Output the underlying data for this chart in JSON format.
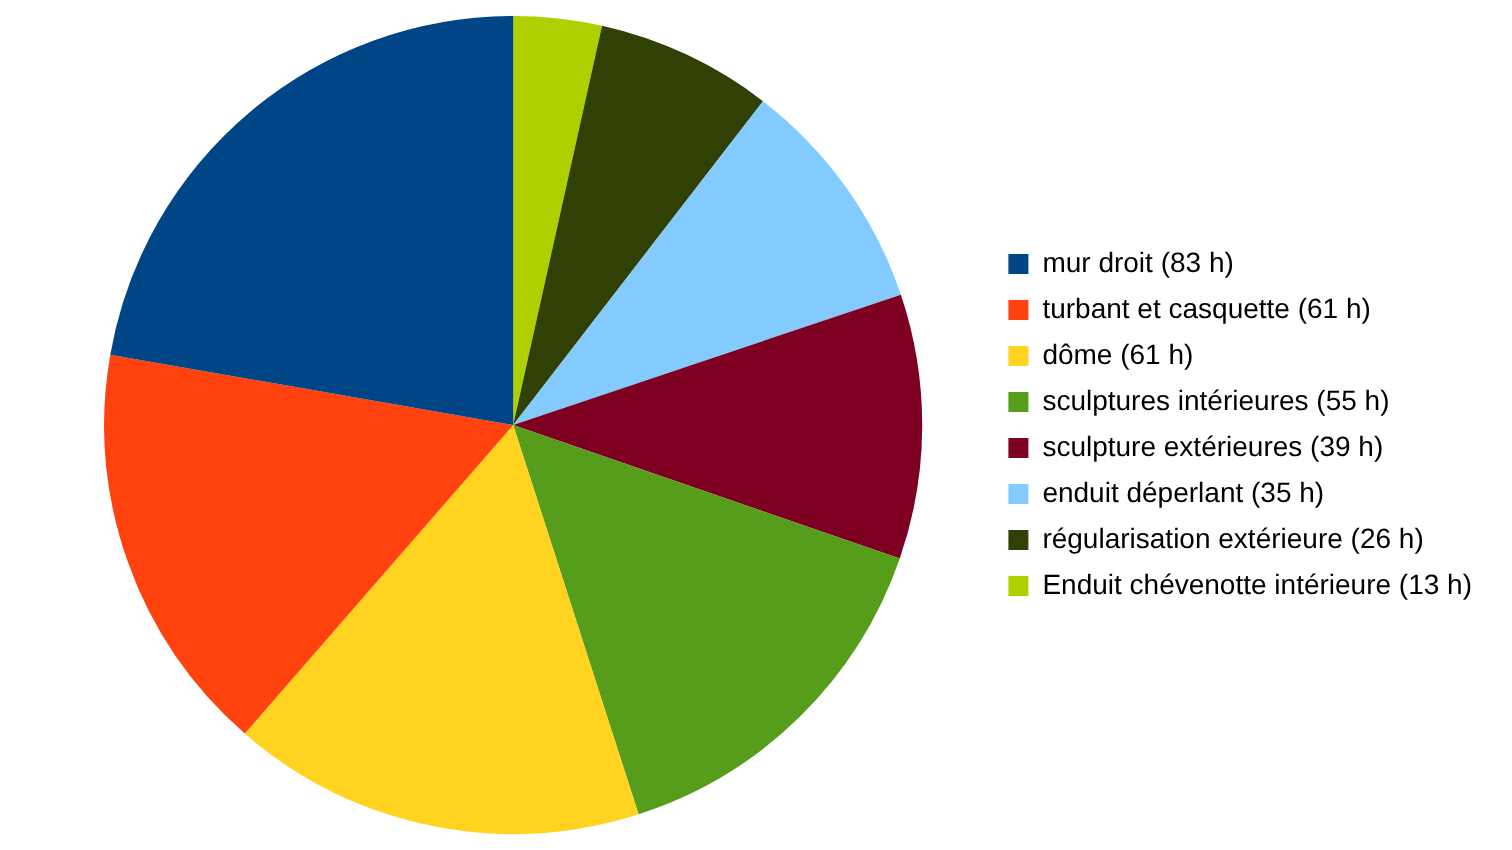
{
  "chart_data": {
    "type": "pie",
    "categories": [
      "mur droit (83 h)",
      "turbant et casquette (61 h)",
      "dôme (61 h)",
      "sculptures intérieures (55 h)",
      "sculpture extérieures (39 h)",
      "enduit déperlant (35 h)",
      "régularisation extérieure (26 h)",
      "Enduit chévenotte intérieure (13 h)"
    ],
    "values": [
      83,
      61,
      61,
      55,
      39,
      35,
      26,
      13
    ],
    "colors": [
      "#004586",
      "#ff420e",
      "#ffd320",
      "#579d1c",
      "#7e0021",
      "#83caff",
      "#314004",
      "#aecf00"
    ],
    "legend": "right"
  }
}
